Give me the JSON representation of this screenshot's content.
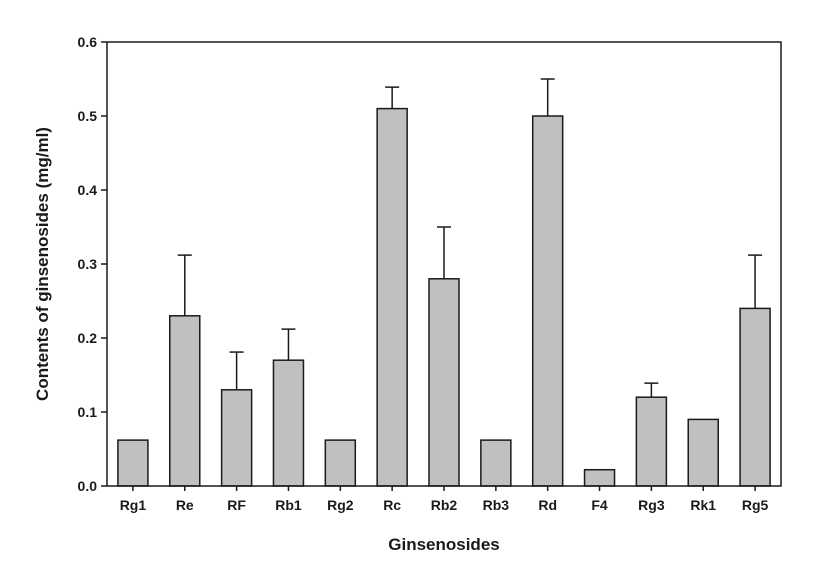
{
  "chart_data": {
    "type": "bar",
    "title": "",
    "xlabel": "Ginsenosides",
    "ylabel": "Contents of ginsenosides (mg/ml)",
    "categories": [
      "Rg1",
      "Re",
      "RF",
      "Rb1",
      "Rg2",
      "Rc",
      "Rb2",
      "Rb3",
      "Rd",
      "F4",
      "Rg3",
      "Rk1",
      "Rg5"
    ],
    "values": [
      0.062,
      0.23,
      0.13,
      0.17,
      0.062,
      0.51,
      0.28,
      0.062,
      0.5,
      0.022,
      0.12,
      0.09,
      0.24
    ],
    "error_plus": [
      0,
      0.082,
      0.051,
      0.042,
      0,
      0.029,
      0.07,
      0,
      0.05,
      0,
      0.019,
      0,
      0.072
    ],
    "ylim": [
      0,
      0.6
    ],
    "yticks": [
      "0.0",
      "0.1",
      "0.2",
      "0.3",
      "0.4",
      "0.5",
      "0.6"
    ],
    "grid": false,
    "legend": "none",
    "colors": {
      "bar_fill": "#c0c0c0",
      "bar_stroke": "#1a1a1a",
      "axis": "#1a1a1a"
    }
  }
}
